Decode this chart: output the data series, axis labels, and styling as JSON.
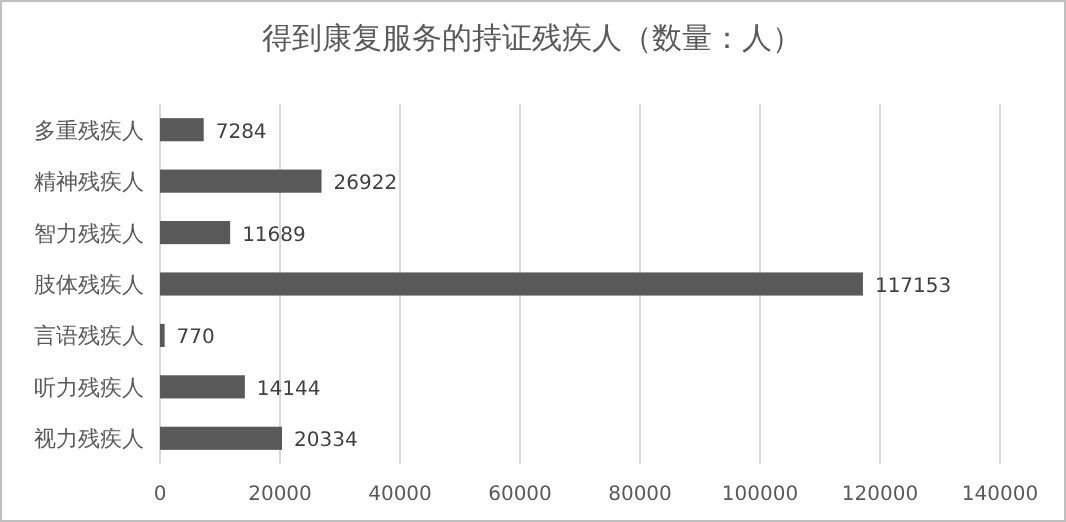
{
  "chart_data": {
    "type": "bar",
    "orientation": "horizontal",
    "title": "得到康复服务的持证残疾人（数量：人）",
    "categories": [
      "多重残疾人",
      "精神残疾人",
      "智力残疾人",
      "肢体残疾人",
      "言语残疾人",
      "听力残疾人",
      "视力残疾人"
    ],
    "values": [
      7284,
      26922,
      11689,
      117153,
      770,
      14144,
      20334
    ],
    "color": "#595959",
    "xlim": [
      0,
      140000
    ],
    "xticks": [
      0,
      20000,
      40000,
      60000,
      80000,
      100000,
      120000,
      140000
    ],
    "grid": "x",
    "data_labels": true
  }
}
